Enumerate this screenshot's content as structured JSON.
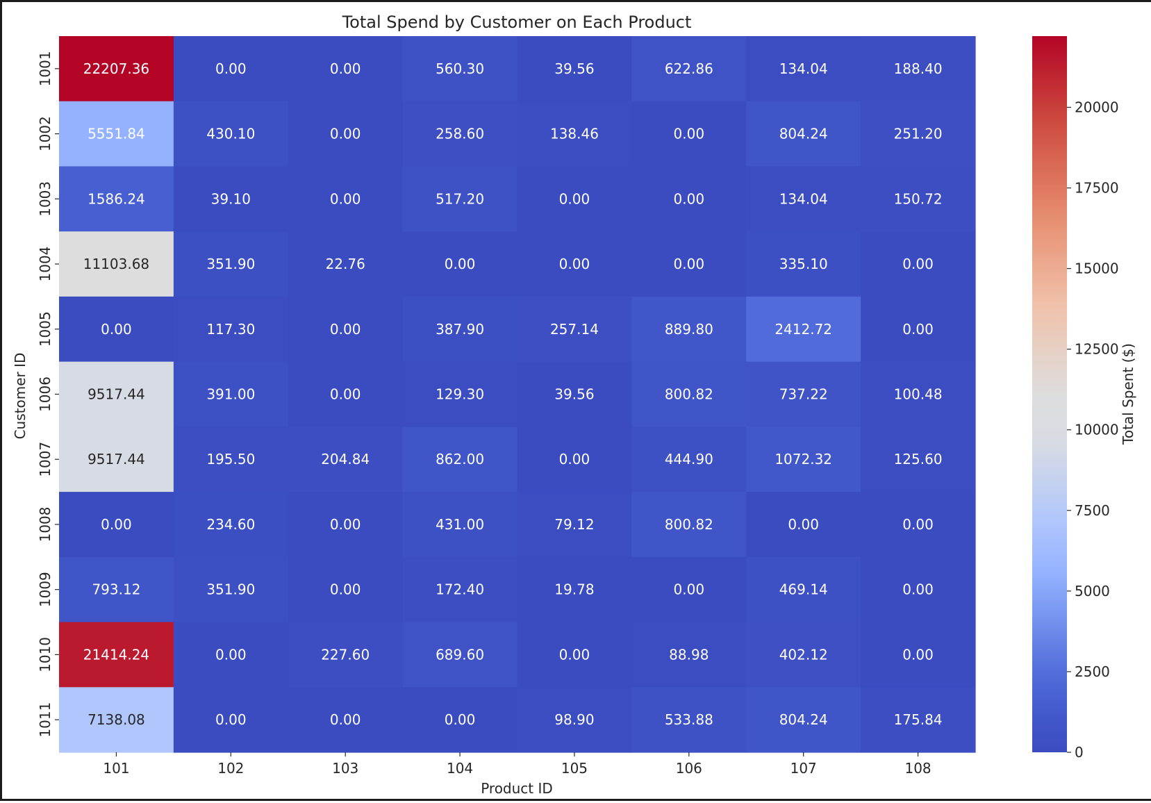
{
  "chart_data": {
    "type": "heatmap",
    "title": "Total Spend by Customer on Each Product",
    "xlabel": "Product ID",
    "ylabel": "Customer ID",
    "x_categories": [
      "101",
      "102",
      "103",
      "104",
      "105",
      "106",
      "107",
      "108"
    ],
    "y_categories": [
      "1001",
      "1002",
      "1003",
      "1004",
      "1005",
      "1006",
      "1007",
      "1008",
      "1009",
      "1010",
      "1011"
    ],
    "values": [
      [
        22207.36,
        0.0,
        0.0,
        560.3,
        39.56,
        622.86,
        134.04,
        188.4
      ],
      [
        5551.84,
        430.1,
        0.0,
        258.6,
        138.46,
        0.0,
        804.24,
        251.2
      ],
      [
        1586.24,
        39.1,
        0.0,
        517.2,
        0.0,
        0.0,
        134.04,
        150.72
      ],
      [
        11103.68,
        351.9,
        22.76,
        0.0,
        0.0,
        0.0,
        335.1,
        0.0
      ],
      [
        0.0,
        117.3,
        0.0,
        387.9,
        257.14,
        889.8,
        2412.72,
        0.0
      ],
      [
        9517.44,
        391.0,
        0.0,
        129.3,
        39.56,
        800.82,
        737.22,
        100.48
      ],
      [
        9517.44,
        195.5,
        204.84,
        862.0,
        0.0,
        444.9,
        1072.32,
        125.6
      ],
      [
        0.0,
        234.6,
        0.0,
        431.0,
        79.12,
        800.82,
        0.0,
        0.0
      ],
      [
        793.12,
        351.9,
        0.0,
        172.4,
        19.78,
        0.0,
        469.14,
        0.0
      ],
      [
        21414.24,
        0.0,
        227.6,
        689.6,
        0.0,
        88.98,
        402.12,
        0.0
      ],
      [
        7138.08,
        0.0,
        0.0,
        0.0,
        98.9,
        533.88,
        804.24,
        175.84
      ]
    ],
    "value_format_decimals": 2,
    "colormap": "coolwarm",
    "color_range": [
      0,
      22207.36
    ],
    "colorbar": {
      "label": "Total Spent ($)",
      "ticks": [
        0,
        2500,
        5000,
        7500,
        10000,
        12500,
        15000,
        17500,
        20000
      ]
    },
    "grid": false,
    "legend": "colorbar-right"
  }
}
